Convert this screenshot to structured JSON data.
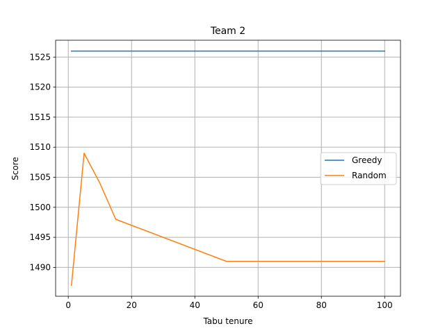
{
  "chart_data": {
    "type": "line",
    "title": "Team 2",
    "xlabel": "Tabu tenure",
    "ylabel": "Score",
    "xlim": [
      -4,
      105
    ],
    "ylim": [
      1485.2,
      1527.8
    ],
    "xticks": [
      0,
      20,
      40,
      60,
      80,
      100
    ],
    "yticks": [
      1490,
      1495,
      1500,
      1505,
      1510,
      1515,
      1520,
      1525
    ],
    "grid": true,
    "legend_position": "center-right",
    "series": [
      {
        "name": "Greedy",
        "color": "#1f77b4",
        "x": [
          1,
          5,
          10,
          15,
          50,
          100
        ],
        "y": [
          1526,
          1526,
          1526,
          1526,
          1526,
          1526
        ]
      },
      {
        "name": "Random",
        "color": "#ff7f0e",
        "x": [
          1,
          5,
          10,
          15,
          50,
          100
        ],
        "y": [
          1487,
          1509,
          1504,
          1498,
          1491,
          1491
        ]
      }
    ]
  }
}
